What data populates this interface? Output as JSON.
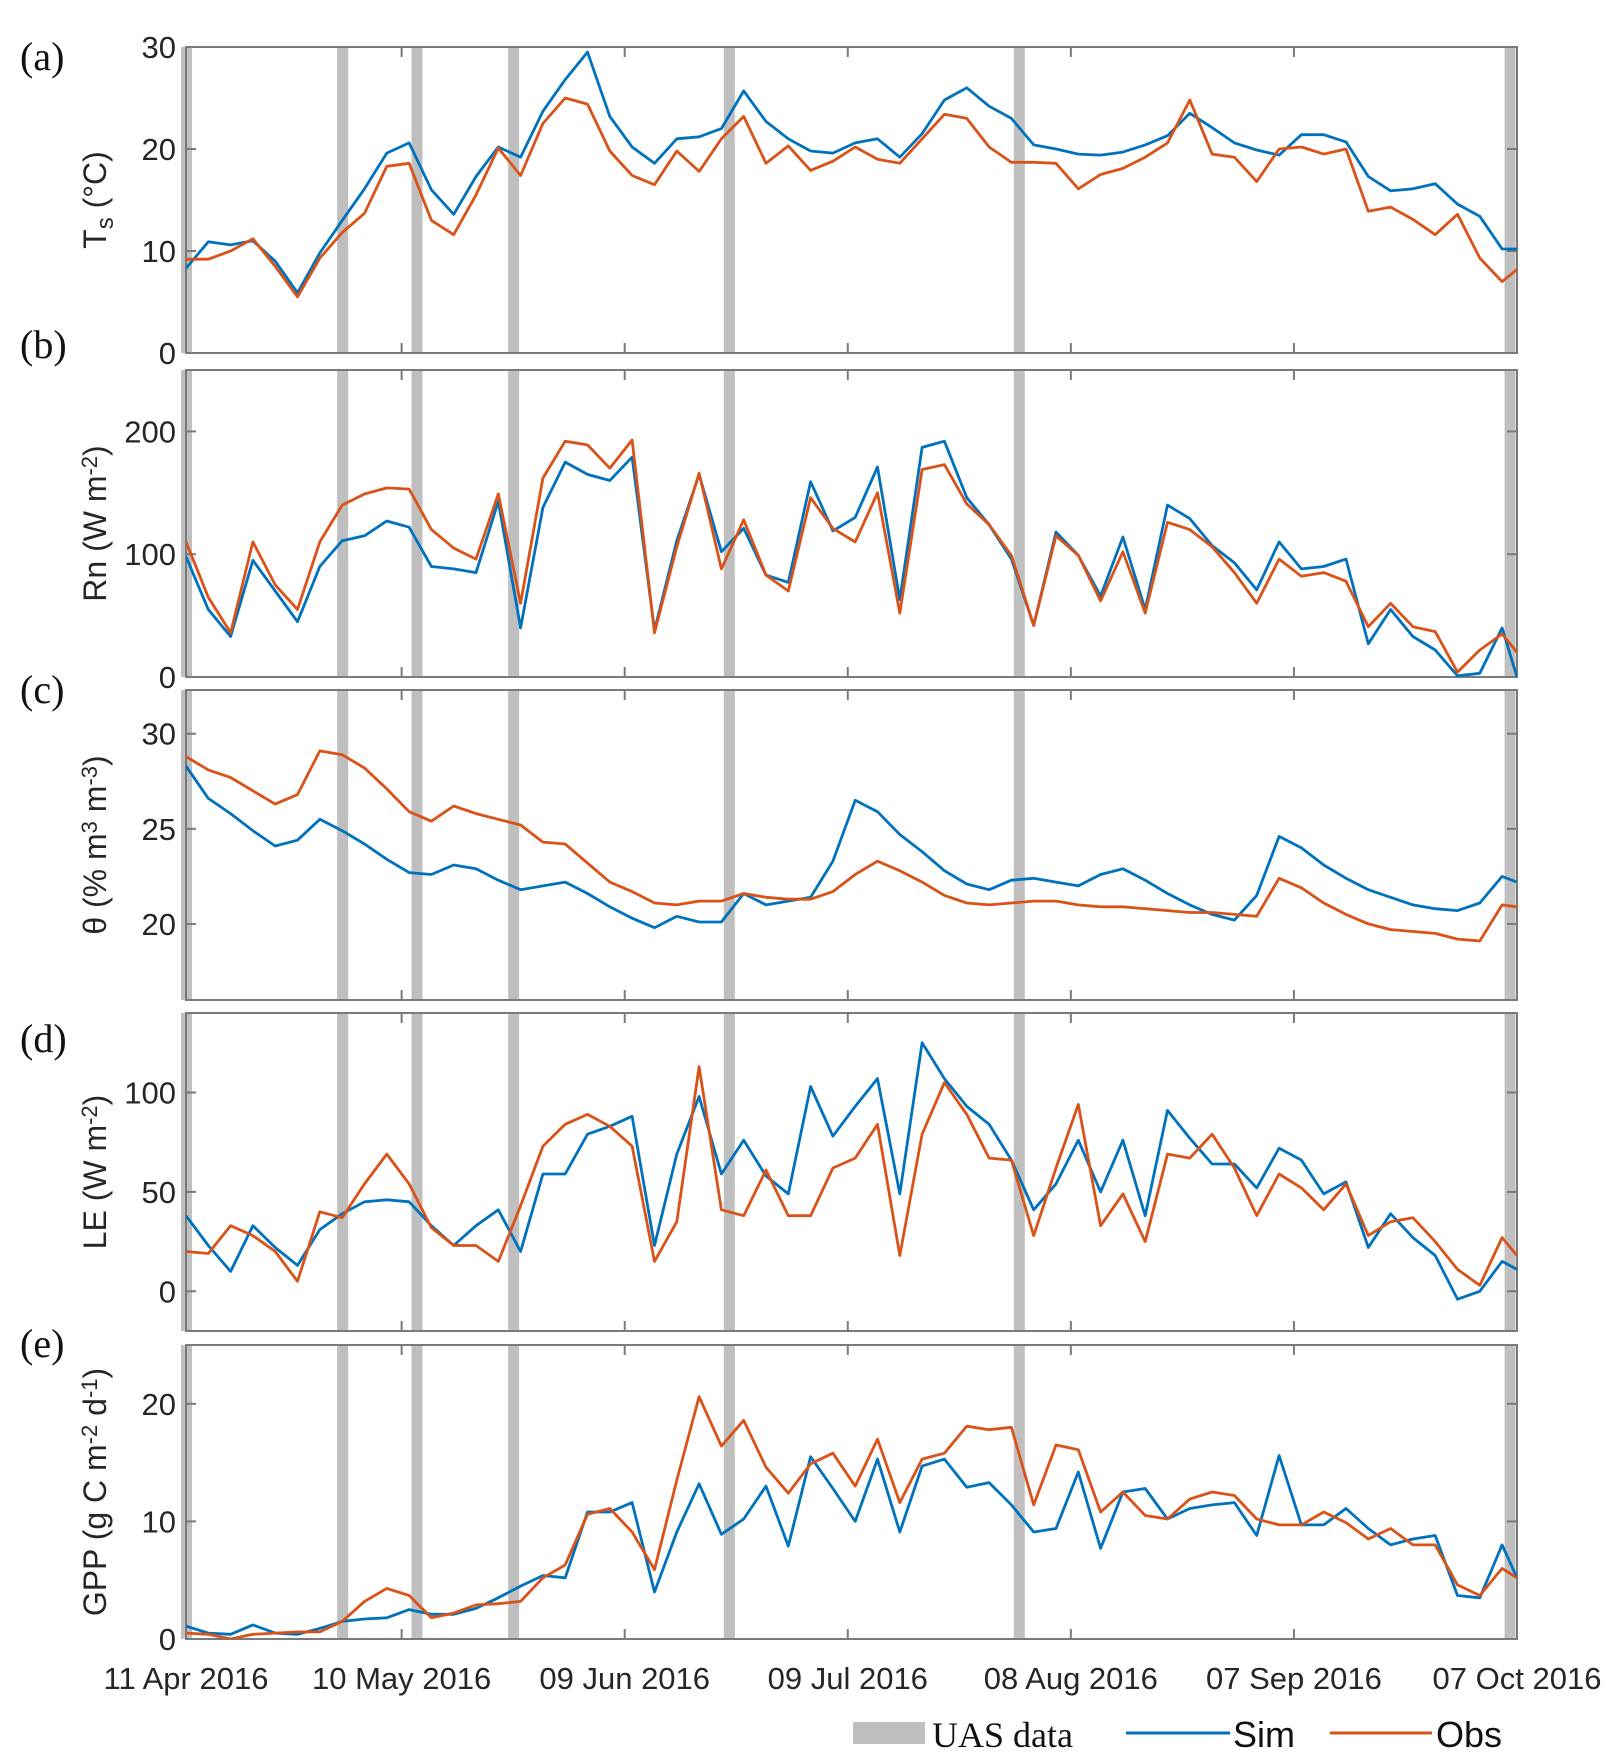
{
  "colors": {
    "sim": "#0072BD",
    "obs": "#D95319",
    "uas": "#BFBFBF",
    "axis": "#7A7A7A"
  },
  "x_axis": {
    "unit": "days since 11 Apr 2016",
    "xlim": [
      0,
      179
    ],
    "x_days": [
      0,
      3,
      6,
      9,
      12,
      15,
      18,
      21,
      24,
      27,
      30,
      33,
      36,
      39,
      42,
      45,
      48,
      51,
      54,
      57,
      60,
      63,
      66,
      69,
      72,
      75,
      78,
      81,
      84,
      87,
      90,
      93,
      96,
      99,
      102,
      105,
      108,
      111,
      114,
      117,
      120,
      123,
      126,
      129,
      132,
      135,
      138,
      141,
      144,
      147,
      150,
      153,
      156,
      159,
      162,
      165,
      168,
      171,
      174,
      177,
      179
    ],
    "tick_days": [
      0,
      29,
      59,
      89,
      119,
      149,
      179
    ],
    "tick_labels": [
      "11 Apr 2016",
      "10 May 2016",
      "09 Jun 2016",
      "09 Jul 2016",
      "08 Aug 2016",
      "07 Sep 2016",
      "07 Oct 2016"
    ],
    "uas_days": [
      0,
      21,
      31,
      44,
      73,
      112,
      178
    ]
  },
  "legend": {
    "uas": "UAS data",
    "sim": "Sim",
    "obs": "Obs",
    "placement": "bottom-right"
  },
  "chart_data": [
    {
      "type": "line",
      "panel_label": "(a)",
      "ylabel": [
        {
          "t": "T"
        },
        {
          "t": "s",
          "sub": true
        },
        {
          "t": " (°C)"
        }
      ],
      "ylim": [
        0,
        30
      ],
      "yticks": [
        0,
        10,
        20,
        30
      ],
      "series": [
        {
          "name": "Sim",
          "values": [
            8.3,
            10.9,
            10.6,
            11,
            9,
            5.9,
            9.8,
            13,
            16.1,
            19.6,
            20.6,
            16,
            13.6,
            17.3,
            20.2,
            19.2,
            23.7,
            26.8,
            29.5,
            23.2,
            20.2,
            18.6,
            21,
            21.2,
            22,
            25.7,
            22.7,
            21,
            19.8,
            19.6,
            20.6,
            21,
            19.2,
            21.5,
            24.8,
            26,
            24.2,
            23,
            20.4,
            20,
            19.5,
            19.4,
            19.7,
            20.4,
            21.3,
            23.5,
            22.1,
            20.6,
            19.9,
            19.4,
            21.4,
            21.4,
            20.7,
            17.3,
            15.9,
            16.1,
            16.6,
            14.6,
            13.4,
            10.2,
            10.2
          ]
        },
        {
          "name": "Obs",
          "values": [
            9.2,
            9.2,
            10,
            11.2,
            8.5,
            5.5,
            9.3,
            11.8,
            13.7,
            18.3,
            18.6,
            13,
            11.6,
            15.5,
            20.1,
            17.4,
            22.5,
            25,
            24.4,
            19.8,
            17.4,
            16.5,
            19.8,
            17.8,
            21,
            23.2,
            18.6,
            20.3,
            17.9,
            18.8,
            20.2,
            19,
            18.6,
            21,
            23.4,
            23,
            20.2,
            18.7,
            18.7,
            18.6,
            16.1,
            17.5,
            18.1,
            19.2,
            20.6,
            24.8,
            19.5,
            19.2,
            16.8,
            20,
            20.2,
            19.5,
            20,
            13.9,
            14.3,
            13.1,
            11.6,
            13.6,
            9.3,
            7,
            8.2
          ]
        }
      ]
    },
    {
      "type": "line",
      "panel_label": "(b)",
      "ylabel": [
        {
          "t": "Rn (W m"
        },
        {
          "t": "-2",
          "sup": true
        },
        {
          "t": ")"
        }
      ],
      "ylim": [
        0,
        250
      ],
      "yticks": [
        0,
        100,
        200
      ],
      "series": [
        {
          "name": "Sim",
          "values": [
            98,
            55,
            33,
            95,
            70,
            45,
            90,
            111,
            115,
            127,
            122,
            90,
            88,
            85,
            143,
            40,
            138,
            175,
            165,
            160,
            179,
            38,
            111,
            165,
            102,
            121,
            83,
            77,
            159,
            119,
            130,
            171,
            63,
            187,
            192,
            146,
            124,
            96,
            42,
            118,
            99,
            66,
            114,
            55,
            140,
            129,
            107,
            93,
            71,
            110,
            88,
            90,
            96,
            27,
            55,
            33,
            22,
            1,
            3,
            40,
            0
          ]
        },
        {
          "name": "Obs",
          "values": [
            110,
            65,
            36,
            110,
            75,
            55,
            110,
            140,
            149,
            154,
            153,
            120,
            105,
            96,
            149,
            60,
            162,
            192,
            189,
            170,
            193,
            36,
            106,
            166,
            88,
            128,
            83,
            70,
            146,
            121,
            110,
            150,
            52,
            169,
            173,
            141,
            124,
            99,
            42,
            115,
            99,
            62,
            102,
            52,
            126,
            120,
            106,
            85,
            60,
            96,
            82,
            85,
            78,
            41,
            60,
            41,
            37,
            4,
            22,
            35,
            20
          ]
        }
      ]
    },
    {
      "type": "line",
      "panel_label": "(c)",
      "ylabel": [
        {
          "t": "θ (% m"
        },
        {
          "t": "3",
          "sup": true
        },
        {
          "t": " m"
        },
        {
          "t": "-3",
          "sup": true
        },
        {
          "t": ")"
        }
      ],
      "ylim": [
        16,
        32.3
      ],
      "yticks": [
        20,
        25,
        30
      ],
      "series": [
        {
          "name": "Sim",
          "values": [
            28.3,
            26.6,
            25.8,
            24.9,
            24.1,
            24.4,
            25.5,
            24.9,
            24.2,
            23.4,
            22.7,
            22.6,
            23.1,
            22.9,
            22.3,
            21.8,
            22.0,
            22.2,
            21.6,
            20.9,
            20.3,
            19.8,
            20.4,
            20.1,
            20.1,
            21.6,
            21.0,
            21.2,
            21.4,
            23.3,
            26.5,
            25.9,
            24.7,
            23.8,
            22.8,
            22.1,
            21.8,
            22.3,
            22.4,
            22.2,
            22.0,
            22.6,
            22.9,
            22.3,
            21.6,
            21.0,
            20.5,
            20.2,
            21.5,
            24.6,
            24.0,
            23.1,
            22.4,
            21.8,
            21.4,
            21.0,
            20.8,
            20.7,
            21.1,
            22.5,
            22.2
          ]
        },
        {
          "name": "Obs",
          "values": [
            28.8,
            28.1,
            27.7,
            27.0,
            26.3,
            26.8,
            29.1,
            28.9,
            28.2,
            27.1,
            25.9,
            25.4,
            26.2,
            25.8,
            25.5,
            25.2,
            24.3,
            24.2,
            23.2,
            22.2,
            21.7,
            21.1,
            21.0,
            21.2,
            21.2,
            21.6,
            21.4,
            21.3,
            21.3,
            21.7,
            22.6,
            23.3,
            22.8,
            22.2,
            21.5,
            21.1,
            21.0,
            21.1,
            21.2,
            21.2,
            21.0,
            20.9,
            20.9,
            20.8,
            20.7,
            20.6,
            20.6,
            20.5,
            20.4,
            22.4,
            21.9,
            21.1,
            20.5,
            20.0,
            19.7,
            19.6,
            19.5,
            19.2,
            19.1,
            21.0,
            20.9
          ]
        }
      ]
    },
    {
      "type": "line",
      "panel_label": "(d)",
      "ylabel": [
        {
          "t": "LE (W m"
        },
        {
          "t": "-2",
          "sup": true
        },
        {
          "t": ")"
        }
      ],
      "ylim": [
        -20,
        140
      ],
      "yticks": [
        0,
        50,
        100
      ],
      "series": [
        {
          "name": "Sim",
          "values": [
            38,
            23,
            10,
            33,
            22,
            13,
            31,
            39,
            45,
            46,
            45,
            33,
            23,
            33,
            41,
            20,
            59,
            59,
            79,
            83,
            88,
            23,
            69,
            98,
            59,
            76,
            58,
            49,
            103,
            78,
            93,
            107,
            49,
            125,
            107,
            93,
            84,
            66,
            41,
            54,
            76,
            50,
            76,
            38,
            91,
            77,
            64,
            64,
            52,
            72,
            66,
            49,
            55,
            22,
            39,
            27,
            18,
            -4,
            0,
            15,
            11
          ]
        },
        {
          "name": "Obs",
          "values": [
            20,
            19,
            33,
            28,
            20,
            5,
            40,
            37,
            54,
            69,
            54,
            32,
            23,
            23,
            15,
            43,
            73,
            84,
            89,
            83,
            73,
            15,
            35,
            113,
            41,
            38,
            61,
            38,
            38,
            62,
            67,
            84,
            18,
            79,
            105,
            89,
            67,
            66,
            28,
            62,
            94,
            33,
            49,
            25,
            69,
            67,
            79,
            62,
            38,
            59,
            52,
            41,
            54,
            28,
            35,
            37,
            25,
            11,
            3,
            27,
            18
          ]
        }
      ]
    },
    {
      "type": "line",
      "panel_label": "(e)",
      "ylabel": [
        {
          "t": "GPP (g C m"
        },
        {
          "t": "-2",
          "sup": true
        },
        {
          "t": " d"
        },
        {
          "t": "-1",
          "sup": true
        },
        {
          "t": ")"
        }
      ],
      "ylim": [
        0,
        25
      ],
      "yticks": [
        0,
        10,
        20
      ],
      "series": [
        {
          "name": "Sim",
          "values": [
            1.1,
            0.5,
            0.4,
            1.2,
            0.5,
            0.4,
            0.9,
            1.5,
            1.7,
            1.8,
            2.5,
            2.1,
            2.1,
            2.6,
            3.5,
            4.5,
            5.4,
            5.2,
            10.8,
            10.8,
            11.6,
            4.0,
            9.1,
            13.2,
            8.9,
            10.2,
            13,
            7.9,
            15.5,
            12.8,
            10,
            15.3,
            9.1,
            14.7,
            15.3,
            12.9,
            13.3,
            11.4,
            9.1,
            9.4,
            14.2,
            7.7,
            12.5,
            12.8,
            10.2,
            11.1,
            11.4,
            11.6,
            8.8,
            15.6,
            9.7,
            9.7,
            11.1,
            9.4,
            8,
            8.5,
            8.8,
            3.7,
            3.5,
            8,
            5.2
          ]
        },
        {
          "name": "Obs",
          "values": [
            0.5,
            0.4,
            0,
            0.4,
            0.5,
            0.6,
            0.6,
            1.5,
            3.2,
            4.3,
            3.7,
            1.8,
            2.2,
            2.9,
            3.0,
            3.2,
            5.2,
            6.3,
            10.6,
            11.1,
            9.1,
            5.9,
            13.5,
            20.6,
            16.4,
            18.6,
            14.6,
            12.4,
            14.9,
            15.8,
            13,
            17,
            11.6,
            15.3,
            15.8,
            18.1,
            17.8,
            18,
            11.4,
            16.5,
            16.1,
            10.8,
            12.5,
            10.5,
            10.2,
            11.9,
            12.5,
            12.2,
            10.2,
            9.7,
            9.7,
            10.8,
            9.9,
            8.5,
            9.4,
            8,
            8,
            4.6,
            3.7,
            6,
            5.2
          ]
        }
      ]
    }
  ]
}
